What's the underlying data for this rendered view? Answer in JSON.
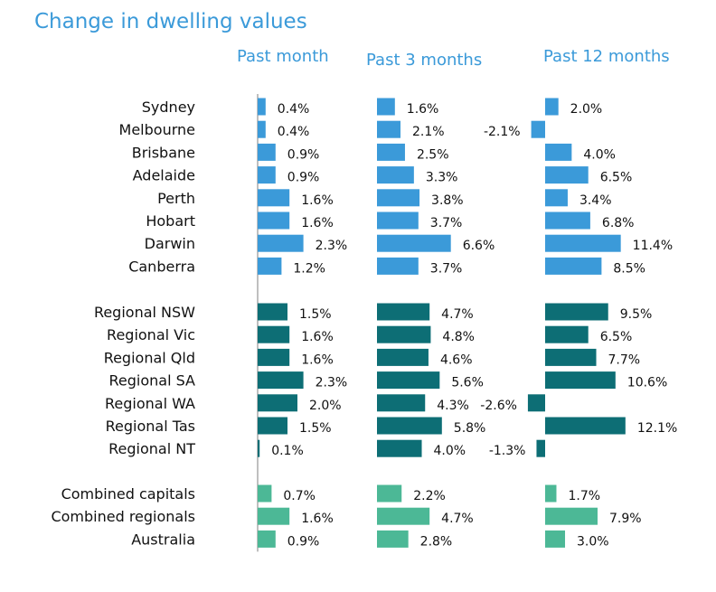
{
  "chart_data": {
    "type": "bar",
    "title": "Change in dwelling values",
    "panels": [
      "Past month",
      "Past 3 months",
      "Past 12 months"
    ],
    "groups": [
      {
        "name": "capitals",
        "color": "#3b9ad9",
        "rows": [
          {
            "label": "Sydney",
            "values": [
              0.4,
              1.6,
              2.0
            ]
          },
          {
            "label": "Melbourne",
            "values": [
              0.4,
              2.1,
              -2.1
            ]
          },
          {
            "label": "Brisbane",
            "values": [
              0.9,
              2.5,
              4.0
            ]
          },
          {
            "label": "Adelaide",
            "values": [
              0.9,
              3.3,
              6.5
            ]
          },
          {
            "label": "Perth",
            "values": [
              1.6,
              3.8,
              3.4
            ]
          },
          {
            "label": "Hobart",
            "values": [
              1.6,
              3.7,
              6.8
            ]
          },
          {
            "label": "Darwin",
            "values": [
              2.3,
              6.6,
              11.4
            ]
          },
          {
            "label": "Canberra",
            "values": [
              1.2,
              3.7,
              8.5
            ]
          }
        ]
      },
      {
        "name": "regionals",
        "color": "#0d6e75",
        "rows": [
          {
            "label": "Regional NSW",
            "values": [
              1.5,
              4.7,
              9.5
            ]
          },
          {
            "label": "Regional Vic",
            "values": [
              1.6,
              4.8,
              6.5
            ]
          },
          {
            "label": "Regional Qld",
            "values": [
              1.6,
              4.6,
              7.7
            ]
          },
          {
            "label": "Regional SA",
            "values": [
              2.3,
              5.6,
              10.6
            ]
          },
          {
            "label": "Regional WA",
            "values": [
              2.0,
              4.3,
              -2.6
            ]
          },
          {
            "label": "Regional Tas",
            "values": [
              1.5,
              5.8,
              12.1
            ]
          },
          {
            "label": "Regional NT",
            "values": [
              0.1,
              4.0,
              -1.3
            ]
          }
        ]
      },
      {
        "name": "aggregates",
        "color": "#4cb896",
        "rows": [
          {
            "label": "Combined capitals",
            "values": [
              0.7,
              2.2,
              1.7
            ]
          },
          {
            "label": "Combined regionals",
            "values": [
              1.6,
              4.7,
              7.9
            ]
          },
          {
            "label": "Australia",
            "values": [
              0.9,
              2.8,
              3.0
            ]
          }
        ]
      }
    ],
    "value_format": "percent_one_decimal",
    "baseline_color": "#bfbfbf",
    "legend": "none",
    "grid": false
  }
}
